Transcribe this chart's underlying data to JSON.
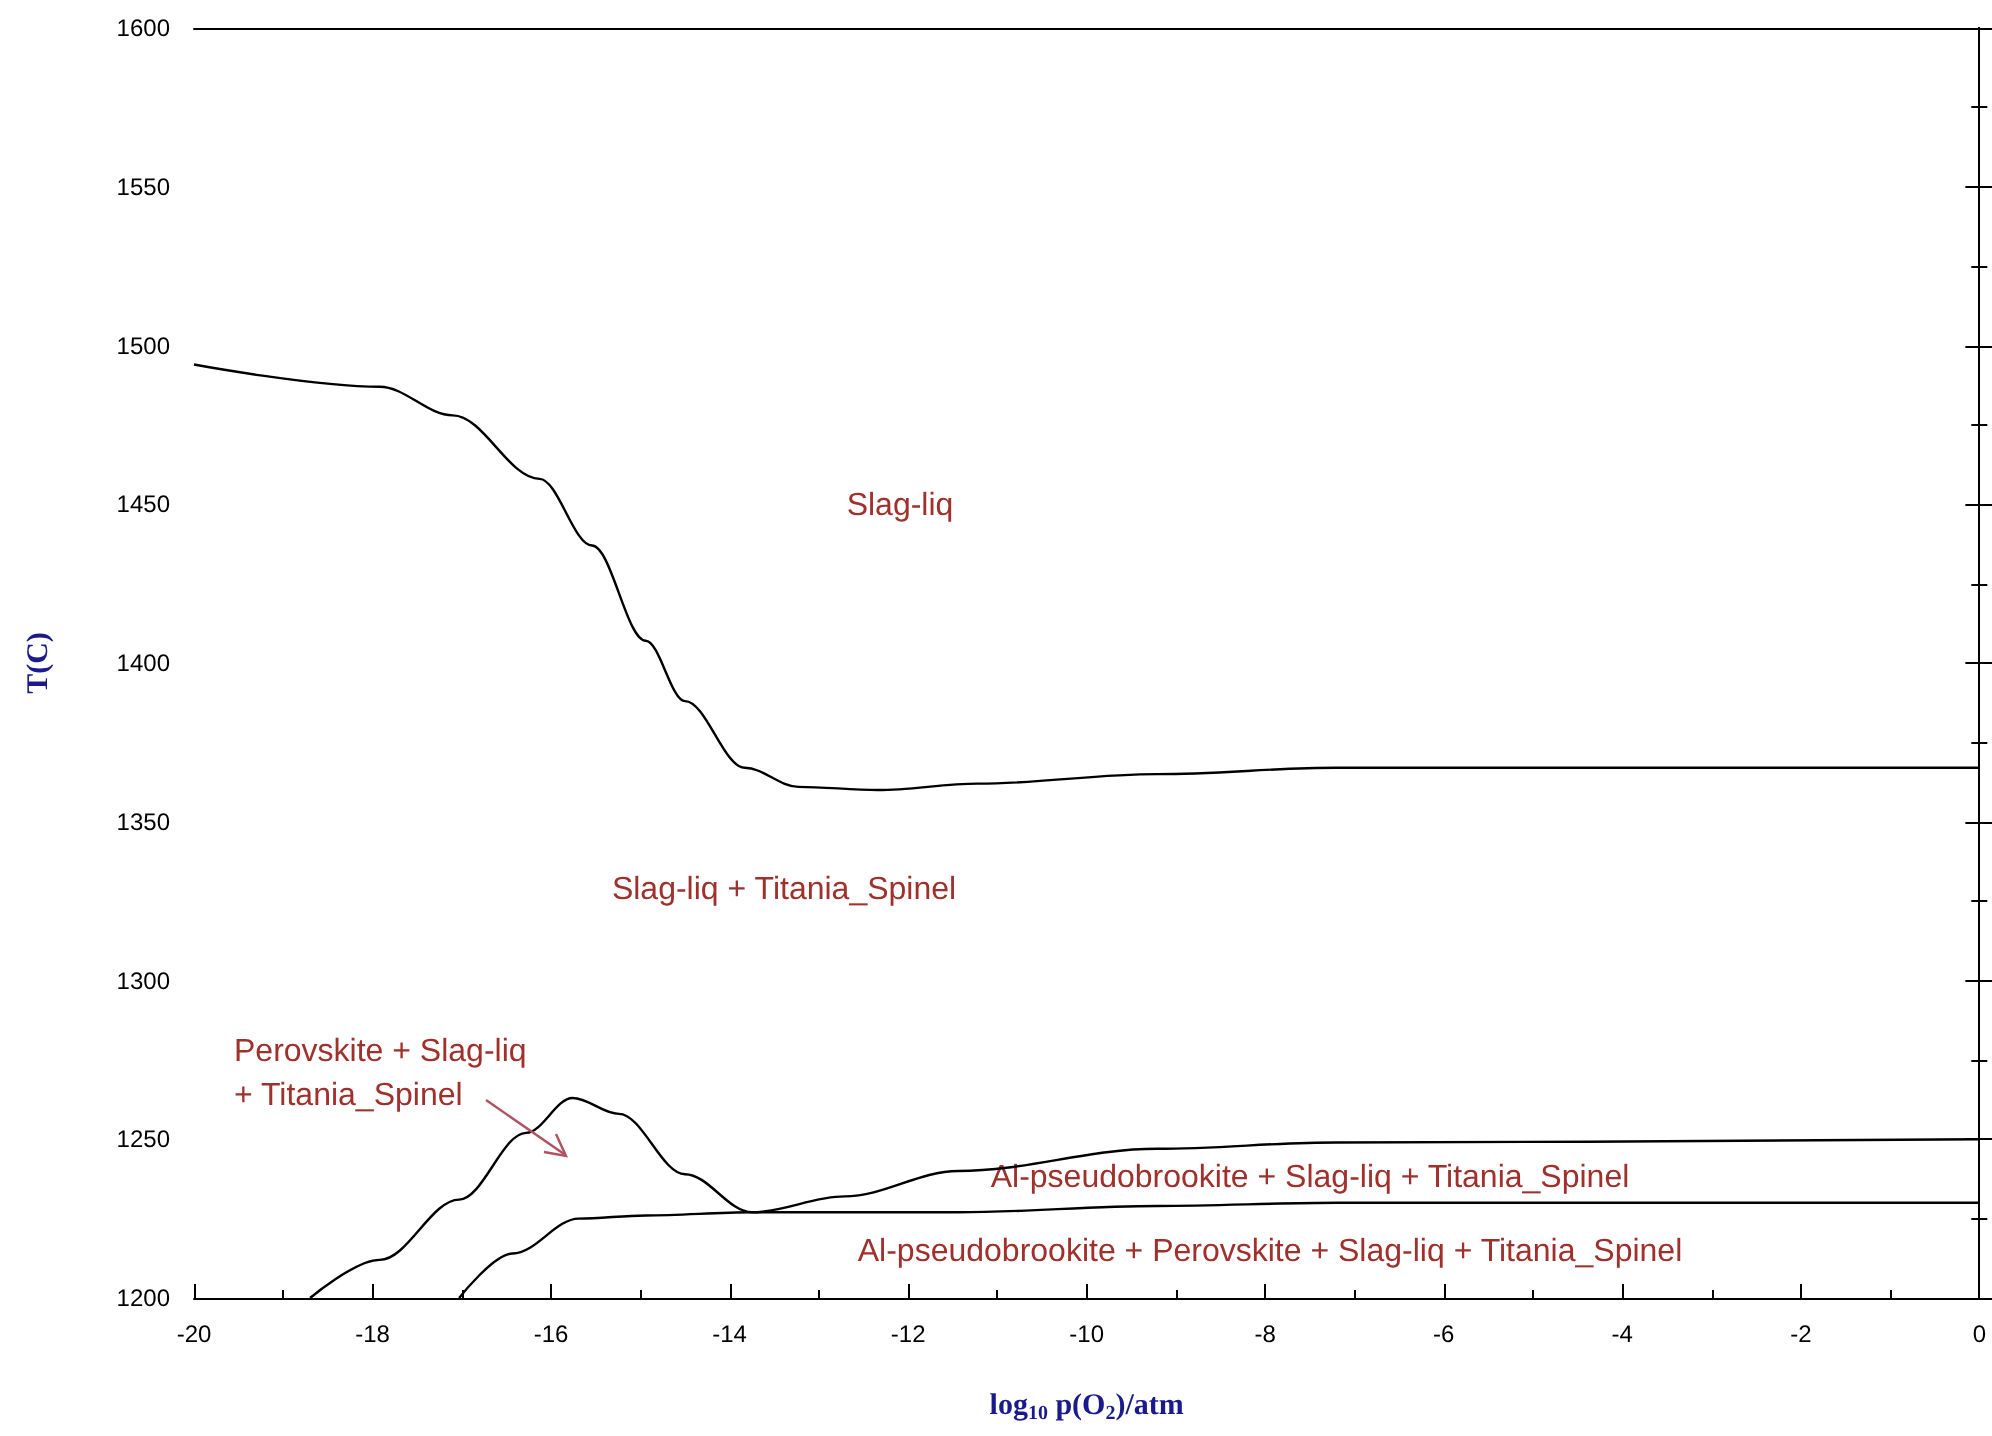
{
  "chart_data": {
    "type": "line",
    "xlabel": "log$_{10}$ p(O$_{2}$)/atm",
    "ylabel": "T(C)",
    "xlim": [
      -20,
      0
    ],
    "xticks": [
      -20,
      -18,
      -16,
      -14,
      -12,
      -10,
      -8,
      -6,
      -4,
      -2,
      0
    ],
    "ylim": [
      1200,
      1600
    ],
    "yticks": [
      1200,
      1250,
      1300,
      1350,
      1400,
      1450,
      1500,
      1550,
      1600
    ],
    "marker": "none",
    "line_style": "solid",
    "series": [
      {
        "color": "#000000",
        "x": [
          -20,
          -17.92,
          -17.1,
          -16.13,
          -15.54,
          -14.94,
          -14.5,
          -13.83,
          -13.23,
          -12.34,
          -11.22,
          -9.21,
          -7.2,
          0
        ],
        "values": [
          1494,
          1487,
          1478,
          1458,
          1437,
          1407,
          1388,
          1367,
          1361,
          1360,
          1362,
          1365,
          1367,
          1367
        ]
      },
      {
        "color": "#000000",
        "x": [
          -18.7,
          -17.92,
          -17.03,
          -16.28,
          -15.76,
          -15.24,
          -14.5,
          -13.75,
          -12.71,
          -11.44,
          -9.21,
          -7.2,
          0
        ],
        "values": [
          1200,
          1212,
          1231,
          1252,
          1263,
          1258,
          1239,
          1227,
          1232,
          1240,
          1247,
          1249,
          1250
        ]
      },
      {
        "color": "#000000",
        "x": [
          -17.03,
          -16.43,
          -15.69,
          -14.94,
          -13.75,
          -11.44,
          -9.21,
          -7.2,
          0
        ],
        "values": [
          1200,
          1214,
          1225,
          1226,
          1227,
          1227,
          1229,
          1230,
          1230
        ]
      }
    ],
    "annotations": [
      "Perovskite + Slag-liq + Titania_Spinel",
      "Slag-liq",
      "Slag-liq + Titania_Spinel",
      "Al-pseudobrookite + Slag-liq + Titania_Spinel",
      "Al-pseudobrookite + Perovskite + Slag-liq + Titania_Spinel"
    ]
  }
}
